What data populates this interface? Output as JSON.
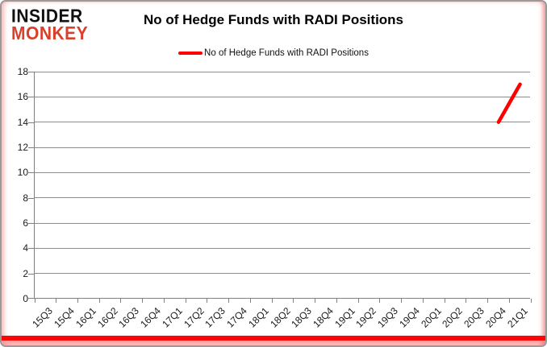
{
  "logo": {
    "line1": "INSIDER",
    "line2": "MONKEY",
    "accent_color": "#d8402c"
  },
  "title": "No of Hedge Funds with RADI Positions",
  "legend": {
    "label": "No of Hedge Funds with RADI Positions",
    "line_color": "#ff0000"
  },
  "chart_data": {
    "type": "line",
    "categories": [
      "15Q3",
      "15Q4",
      "16Q1",
      "16Q2",
      "16Q3",
      "16Q4",
      "17Q1",
      "17Q2",
      "17Q3",
      "17Q4",
      "18Q1",
      "18Q2",
      "18Q3",
      "18Q4",
      "19Q1",
      "19Q2",
      "19Q3",
      "19Q4",
      "20Q1",
      "20Q2",
      "20Q3",
      "20Q4",
      "21Q1"
    ],
    "series": [
      {
        "name": "No of Hedge Funds with RADI Positions",
        "color": "#ff0000",
        "values": [
          null,
          null,
          null,
          null,
          null,
          null,
          null,
          null,
          null,
          null,
          null,
          null,
          null,
          null,
          null,
          null,
          null,
          null,
          null,
          null,
          null,
          14,
          17
        ]
      }
    ],
    "title": "No of Hedge Funds with RADI Positions",
    "xlabel": "",
    "ylabel": "",
    "ylim": [
      0,
      18
    ],
    "ytick_step": 2,
    "grid": true,
    "legend_position": "top",
    "gridline_color": "#8c8c8c",
    "axis_color": "#808080"
  },
  "frame": {
    "bottom_bar_color": "#fb0606",
    "border_color": "#9a9a9a"
  }
}
